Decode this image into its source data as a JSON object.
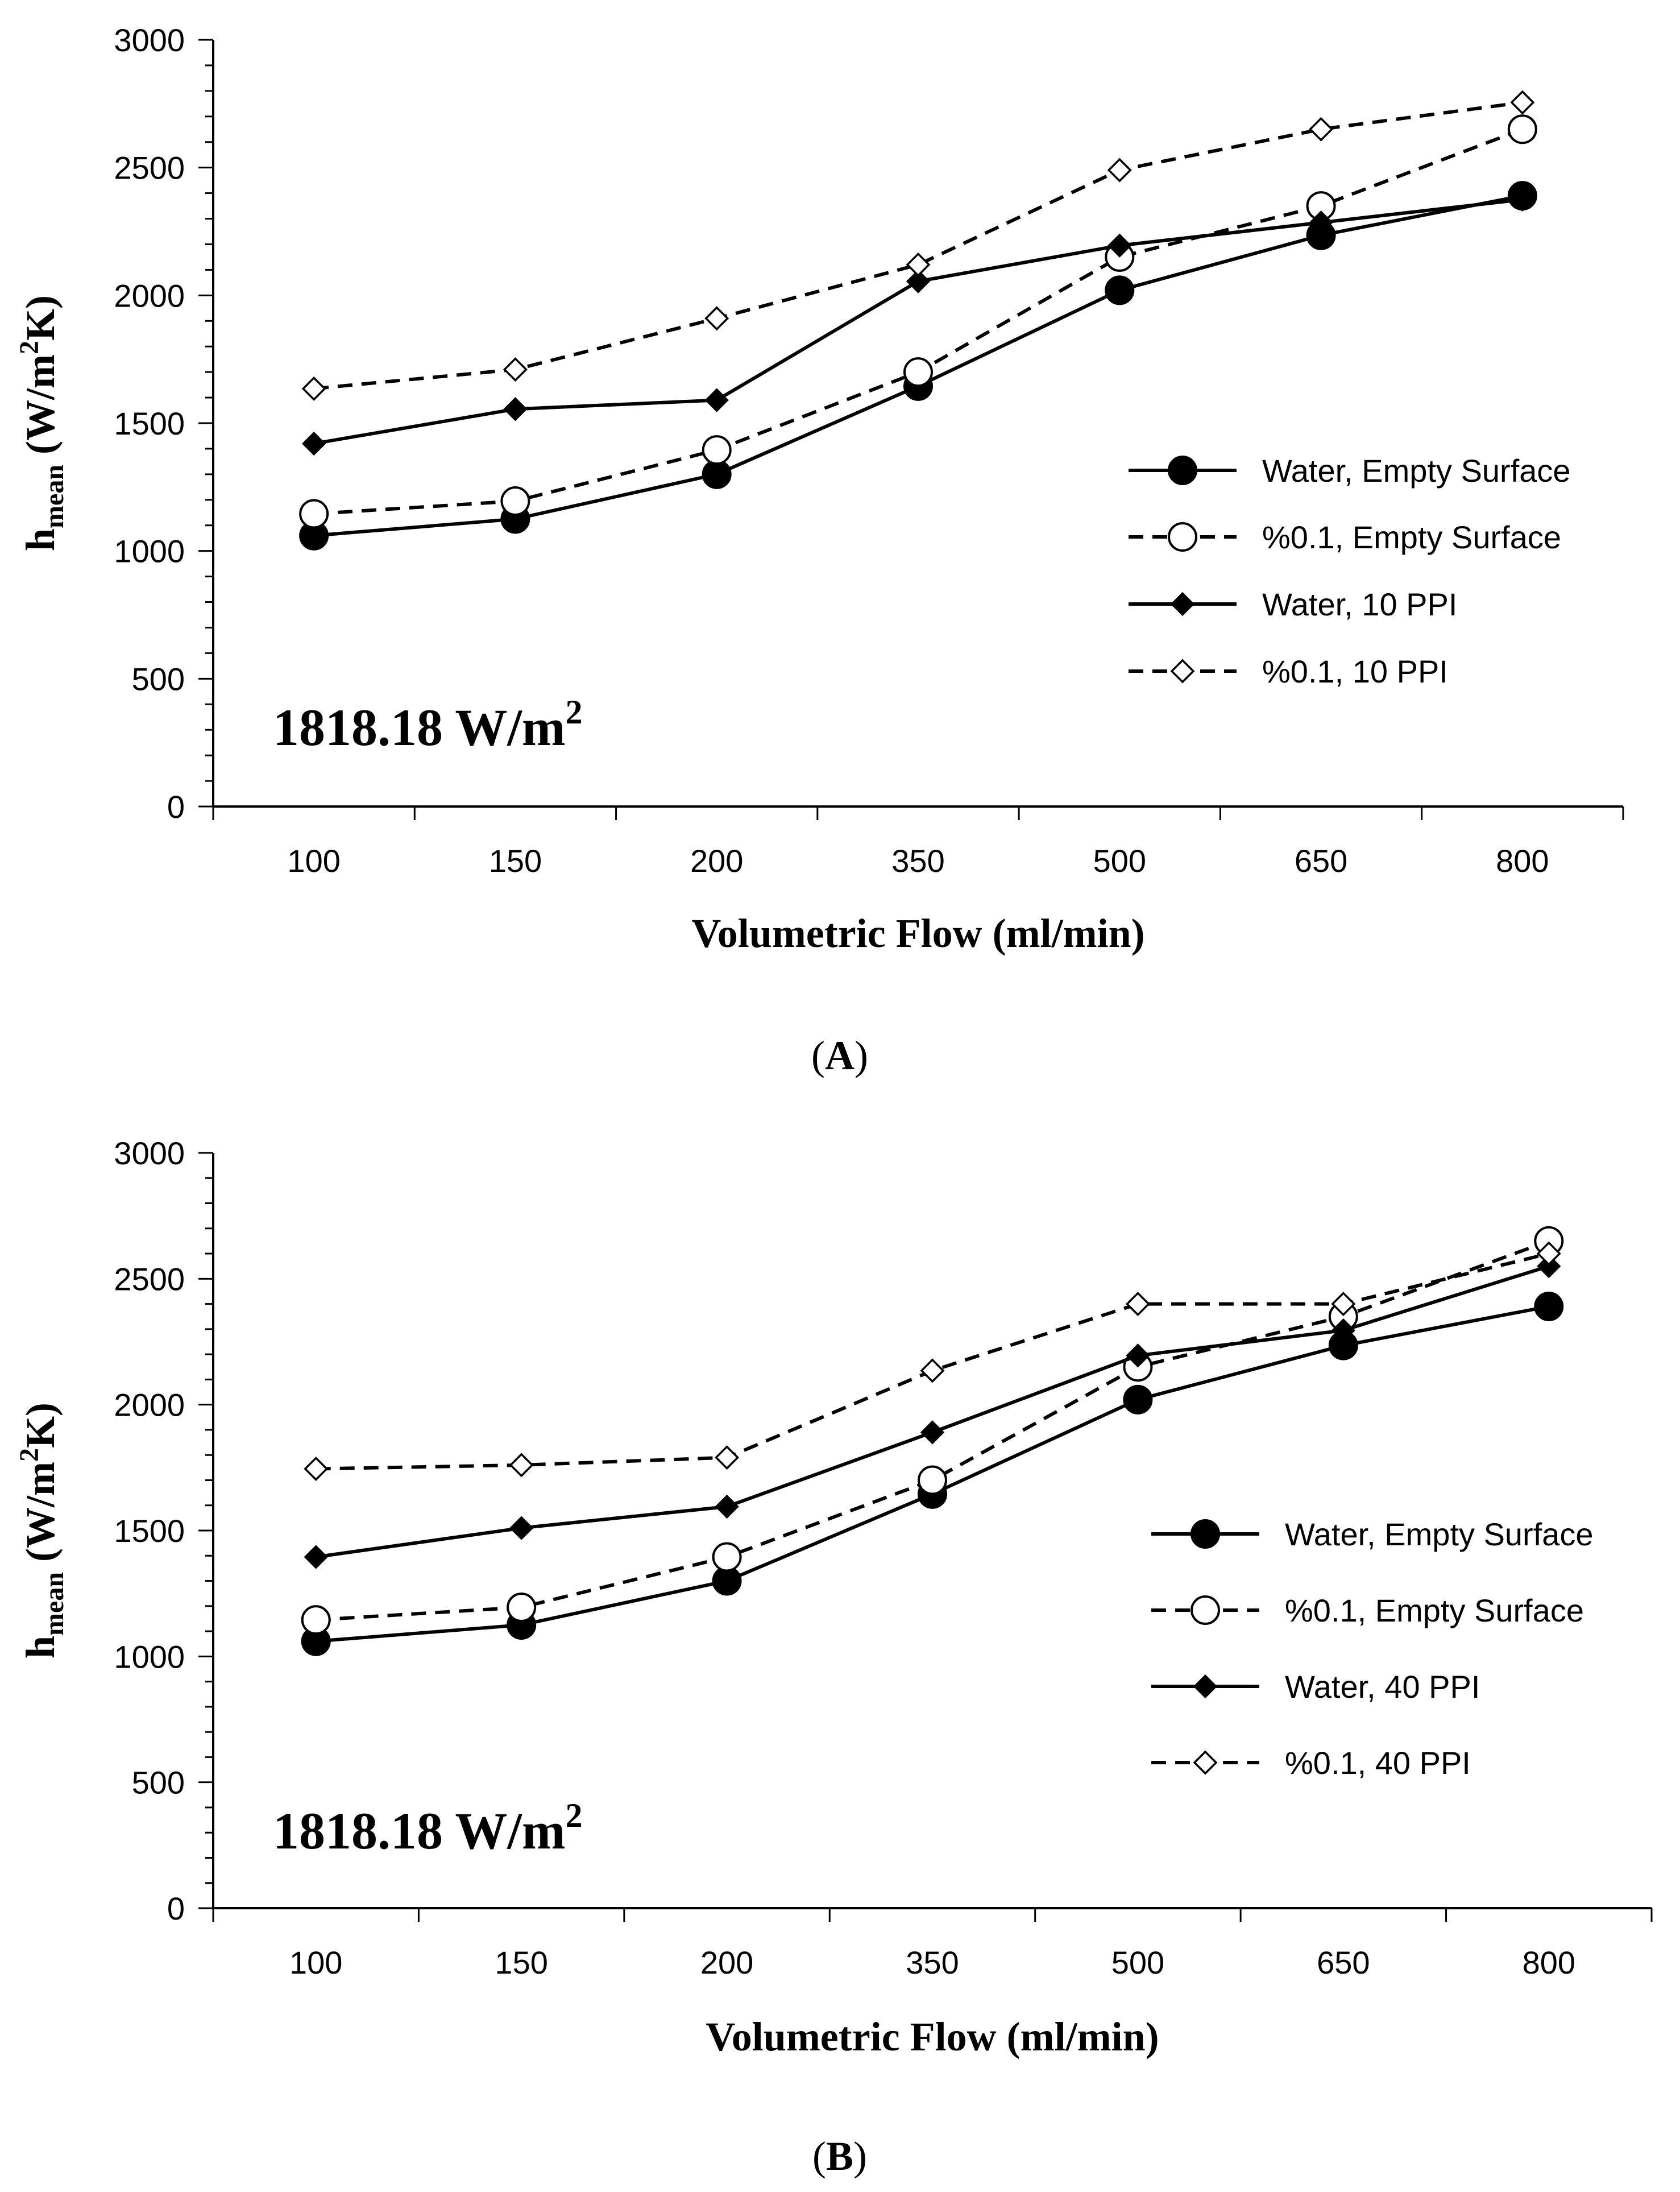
{
  "chart_data": [
    {
      "type": "line",
      "panel_label": "A",
      "categories": [
        "100",
        "150",
        "200",
        "350",
        "500",
        "650",
        "800"
      ],
      "xlabel": "Volumetric Flow (ml/min)",
      "ylabel": {
        "h": "h",
        "sub": "mean",
        "units_pre": "(W/m",
        "units_sup": "2",
        "units_post": "K)"
      },
      "ylim": [
        0,
        3000
      ],
      "yticks": [
        0,
        500,
        1000,
        1500,
        2000,
        2500,
        3000
      ],
      "annotation": {
        "text": "1818.18 W/m",
        "sup": "2"
      },
      "legend_position": "right",
      "series": [
        {
          "name": "Water, Empty Surface",
          "marker": "circle-filled",
          "dash": "solid",
          "values": [
            1060,
            1125,
            1300,
            1645,
            2020,
            2235,
            2390
          ]
        },
        {
          "name": "%0.1, Empty Surface",
          "marker": "circle-open",
          "dash": "dashed",
          "values": [
            1145,
            1195,
            1395,
            1700,
            2150,
            2350,
            2650
          ]
        },
        {
          "name": "Water, 10 PPI",
          "marker": "diamond-filled",
          "dash": "solid",
          "values": [
            1420,
            1555,
            1590,
            2055,
            2195,
            2285,
            2375
          ]
        },
        {
          "name": "%0.1, 10 PPI",
          "marker": "diamond-open",
          "dash": "dashed",
          "values": [
            1635,
            1710,
            1910,
            2120,
            2490,
            2650,
            2755
          ]
        }
      ]
    },
    {
      "type": "line",
      "panel_label": "B",
      "categories": [
        "100",
        "150",
        "200",
        "350",
        "500",
        "650",
        "800"
      ],
      "xlabel": "Volumetric Flow (ml/min)",
      "ylabel": {
        "h": "h",
        "sub": "mean",
        "units_pre": "(W/m",
        "units_sup": "2",
        "units_post": "K)"
      },
      "ylim": [
        0,
        3000
      ],
      "yticks": [
        0,
        500,
        1000,
        1500,
        2000,
        2500,
        3000
      ],
      "annotation": {
        "text": "1818.18 W/m",
        "sup": "2"
      },
      "legend_position": "right",
      "series": [
        {
          "name": "Water, Empty Surface",
          "marker": "circle-filled",
          "dash": "solid",
          "values": [
            1060,
            1125,
            1300,
            1645,
            2020,
            2235,
            2390
          ]
        },
        {
          "name": "%0.1, Empty Surface",
          "marker": "circle-open",
          "dash": "dashed",
          "values": [
            1145,
            1195,
            1395,
            1700,
            2150,
            2350,
            2650
          ]
        },
        {
          "name": "Water, 40 PPI",
          "marker": "diamond-filled",
          "dash": "solid",
          "values": [
            1395,
            1510,
            1595,
            1890,
            2195,
            2295,
            2550
          ]
        },
        {
          "name": "%0.1, 40 PPI",
          "marker": "diamond-open",
          "dash": "dashed",
          "values": [
            1745,
            1760,
            1790,
            2135,
            2400,
            2400,
            2600
          ]
        }
      ]
    }
  ]
}
